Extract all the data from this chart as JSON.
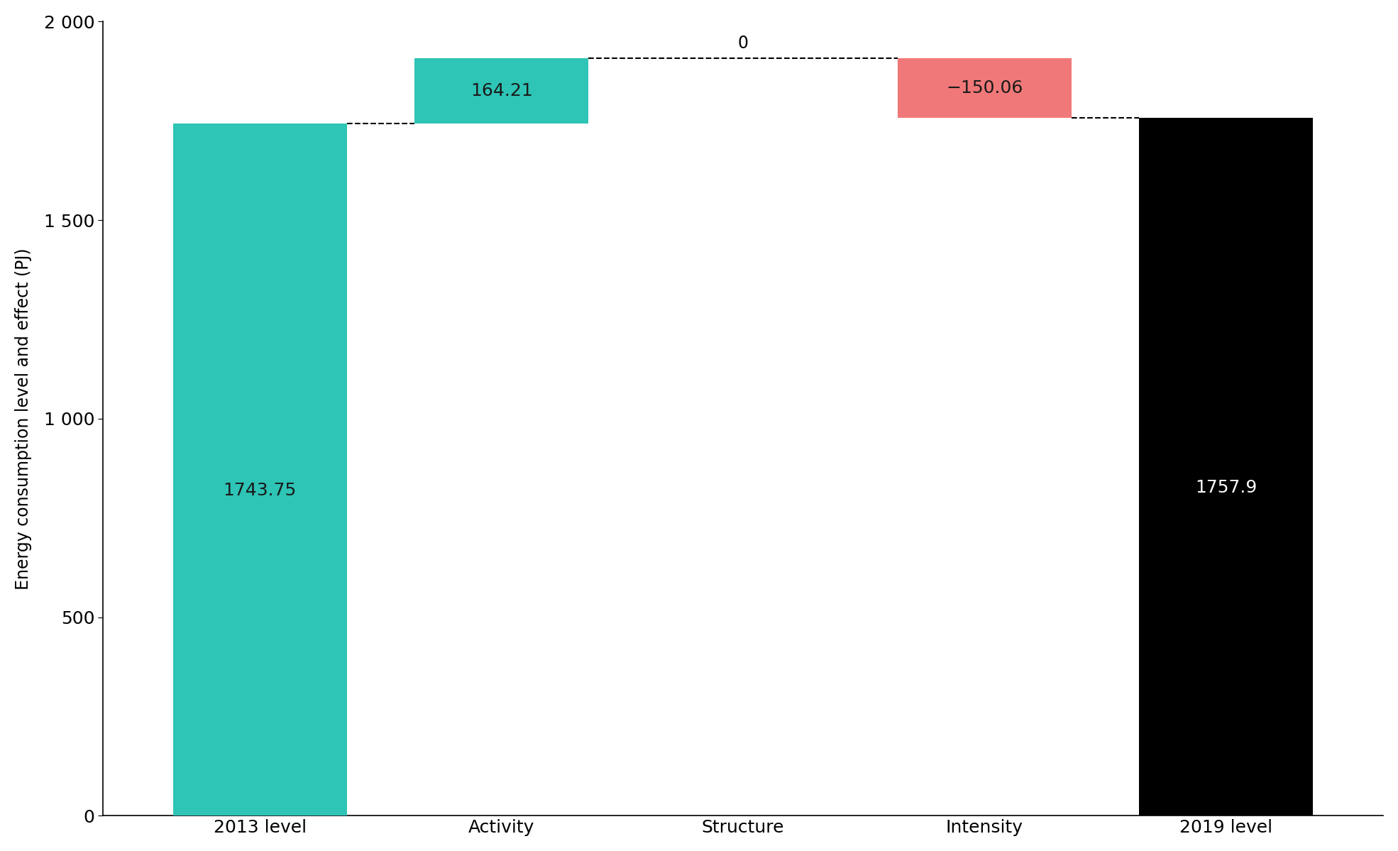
{
  "categories": [
    "2013 level",
    "Activity",
    "Structure",
    "Intensity",
    "2019 level"
  ],
  "base_2013": 1743.75,
  "activity": 164.21,
  "structure": 0,
  "intensity": -150.06,
  "base_2019": 1757.9,
  "color_teal": "#2EC4B6",
  "color_red": "#F07878",
  "color_black": "#000000",
  "ylabel": "Energy consumption level and effect (PJ)",
  "ylim": [
    0,
    2000
  ],
  "yticks": [
    0,
    500,
    1000,
    1500,
    2000
  ],
  "ytick_labels": [
    "0",
    "500",
    "1 000",
    "1 500",
    "2 000"
  ],
  "label_2013": "1743.75",
  "label_activity": "164.21",
  "label_structure": "0",
  "label_intensity": "−150.06",
  "label_2019": "1757.9",
  "background_color": "#ffffff",
  "bar_width": 0.72,
  "figsize": [
    19.7,
    11.99
  ],
  "dpi": 100
}
